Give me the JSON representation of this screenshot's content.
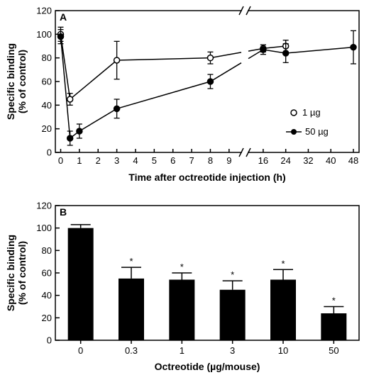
{
  "chart_data": [
    {
      "panel": "A",
      "type": "line",
      "xlabel": "Time after octreotide injection (h)",
      "ylabel_lines": [
        "Specific binding",
        "(% of control)"
      ],
      "ylim": [
        0,
        120
      ],
      "yticks": [
        0,
        20,
        40,
        60,
        80,
        100,
        120
      ],
      "x_axis_break": true,
      "xticks_left": [
        0,
        1,
        2,
        3,
        4,
        5,
        6,
        7,
        8,
        9
      ],
      "xticks_right": [
        16,
        24,
        32,
        40,
        48
      ],
      "legend_position": "right",
      "series": [
        {
          "name": "1 µg",
          "marker": "open-circle",
          "points": [
            {
              "x": 0,
              "y": 100,
              "err": 6
            },
            {
              "x": 0.5,
              "y": 45,
              "err": 5
            },
            {
              "x": 3,
              "y": 78,
              "err": 16
            },
            {
              "x": 8,
              "y": 80,
              "err": 5
            },
            {
              "x": 16,
              "y": 88,
              "err": 3
            },
            {
              "x": 24,
              "y": 90,
              "err": 5
            }
          ]
        },
        {
          "name": "50 µg",
          "marker": "filled-circle",
          "points": [
            {
              "x": 0,
              "y": 98,
              "err": 6
            },
            {
              "x": 0.5,
              "y": 12,
              "err": 6
            },
            {
              "x": 1,
              "y": 18,
              "err": 6
            },
            {
              "x": 3,
              "y": 37,
              "err": 8
            },
            {
              "x": 8,
              "y": 60,
              "err": 6
            },
            {
              "x": 16,
              "y": 87,
              "err": 4
            },
            {
              "x": 24,
              "y": 84,
              "err": 8
            },
            {
              "x": 48,
              "y": 89,
              "err": 14
            }
          ]
        }
      ]
    },
    {
      "panel": "B",
      "type": "bar",
      "xlabel": "Octreotide (µg/mouse)",
      "ylabel_lines": [
        "Specific binding",
        "(% of control)"
      ],
      "ylim": [
        0,
        120
      ],
      "yticks": [
        0,
        20,
        40,
        60,
        80,
        100,
        120
      ],
      "categories": [
        "0",
        "0.3",
        "1",
        "3",
        "10",
        "50"
      ],
      "values": [
        100,
        55,
        54,
        45,
        54,
        24
      ],
      "errors": [
        3,
        10,
        6,
        8,
        9,
        6
      ],
      "significance": [
        "",
        "*",
        "*",
        "*",
        "*",
        "*"
      ]
    }
  ]
}
